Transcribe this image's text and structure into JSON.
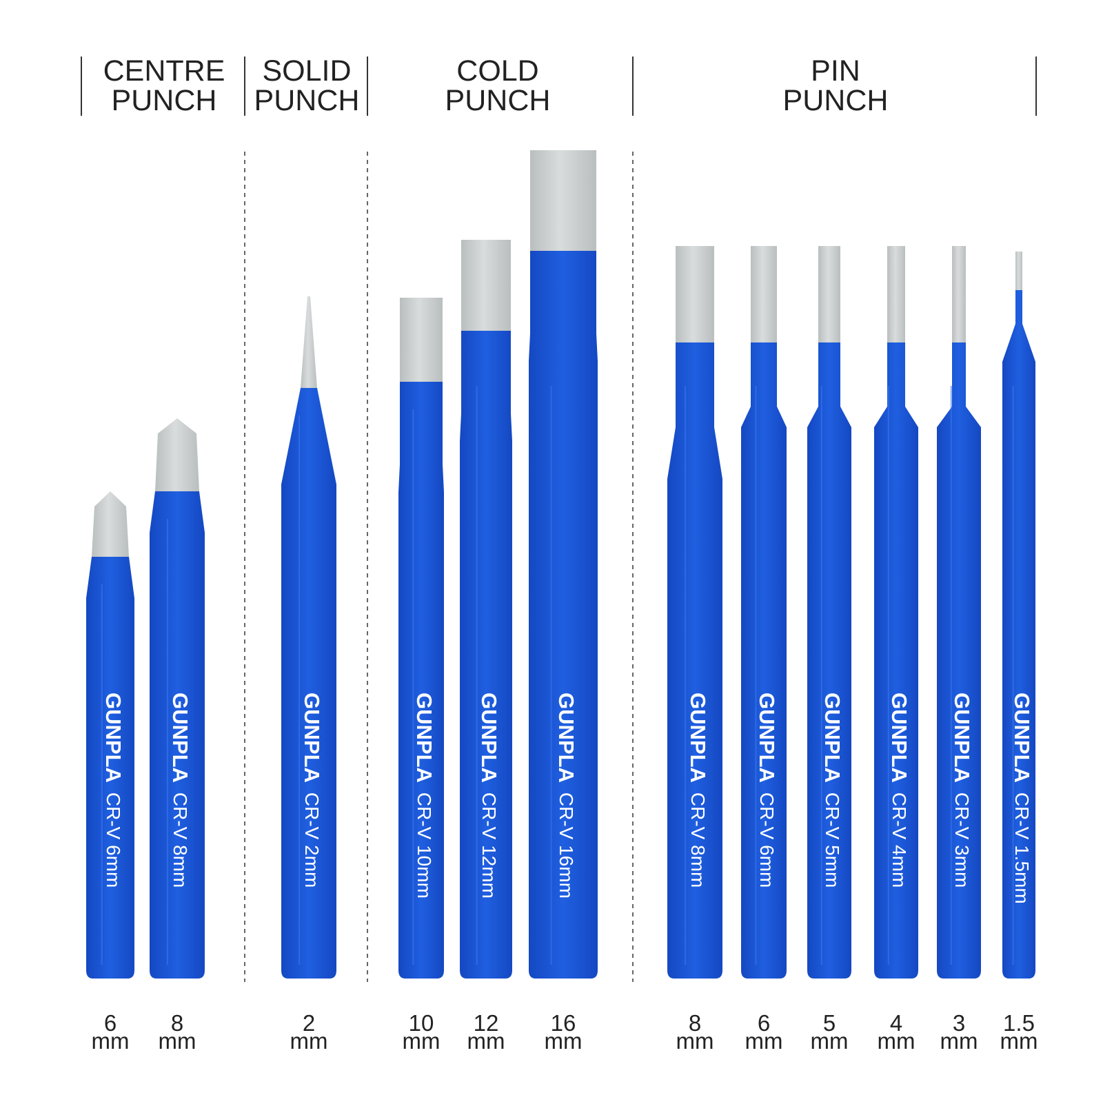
{
  "colors": {
    "tool_blue": "#1f5fe0",
    "tool_blue_dark": "#1548c2",
    "steel": "#d9dcdc",
    "steel_dark": "#b9bebf",
    "text": "#222222",
    "divider": "#333333"
  },
  "groups": [
    {
      "label": "CENTRE\nPUNCH"
    },
    {
      "label": "SOLID\nPUNCH"
    },
    {
      "label": "COLD\nPUNCH"
    },
    {
      "label": "PIN\nPUNCH"
    }
  ],
  "tools": [
    {
      "group": "centre",
      "brand": "GUNPLA",
      "spec": "CR-V  6mm",
      "size_value": "6",
      "size_unit": "mm",
      "icon": "centre-punch-icon"
    },
    {
      "group": "centre",
      "brand": "GUNPLA",
      "spec": "CR-V  8mm",
      "size_value": "8",
      "size_unit": "mm",
      "icon": "centre-punch-icon"
    },
    {
      "group": "solid",
      "brand": "GUNPLA",
      "spec": "CR-V  2mm",
      "size_value": "2",
      "size_unit": "mm",
      "icon": "solid-punch-icon"
    },
    {
      "group": "cold",
      "brand": "GUNPLA",
      "spec": "CR-V  10mm",
      "size_value": "10",
      "size_unit": "mm",
      "icon": "cold-chisel-icon"
    },
    {
      "group": "cold",
      "brand": "GUNPLA",
      "spec": "CR-V  12mm",
      "size_value": "12",
      "size_unit": "mm",
      "icon": "cold-chisel-icon"
    },
    {
      "group": "cold",
      "brand": "GUNPLA",
      "spec": "CR-V  16mm",
      "size_value": "16",
      "size_unit": "mm",
      "icon": "cold-chisel-icon"
    },
    {
      "group": "pin",
      "brand": "GUNPLA",
      "spec": "CR-V  8mm",
      "size_value": "8",
      "size_unit": "mm",
      "icon": "pin-punch-icon"
    },
    {
      "group": "pin",
      "brand": "GUNPLA",
      "spec": "CR-V  6mm",
      "size_value": "6",
      "size_unit": "mm",
      "icon": "pin-punch-icon"
    },
    {
      "group": "pin",
      "brand": "GUNPLA",
      "spec": "CR-V  5mm",
      "size_value": "5",
      "size_unit": "mm",
      "icon": "pin-punch-icon"
    },
    {
      "group": "pin",
      "brand": "GUNPLA",
      "spec": "CR-V  4mm",
      "size_value": "4",
      "size_unit": "mm",
      "icon": "pin-punch-icon"
    },
    {
      "group": "pin",
      "brand": "GUNPLA",
      "spec": "CR-V  3mm",
      "size_value": "3",
      "size_unit": "mm",
      "icon": "pin-punch-icon"
    },
    {
      "group": "pin",
      "brand": "GUNPLA",
      "spec": "CR-V  1.5mm",
      "size_value": "1.5",
      "size_unit": "mm",
      "icon": "pin-punch-icon"
    }
  ]
}
